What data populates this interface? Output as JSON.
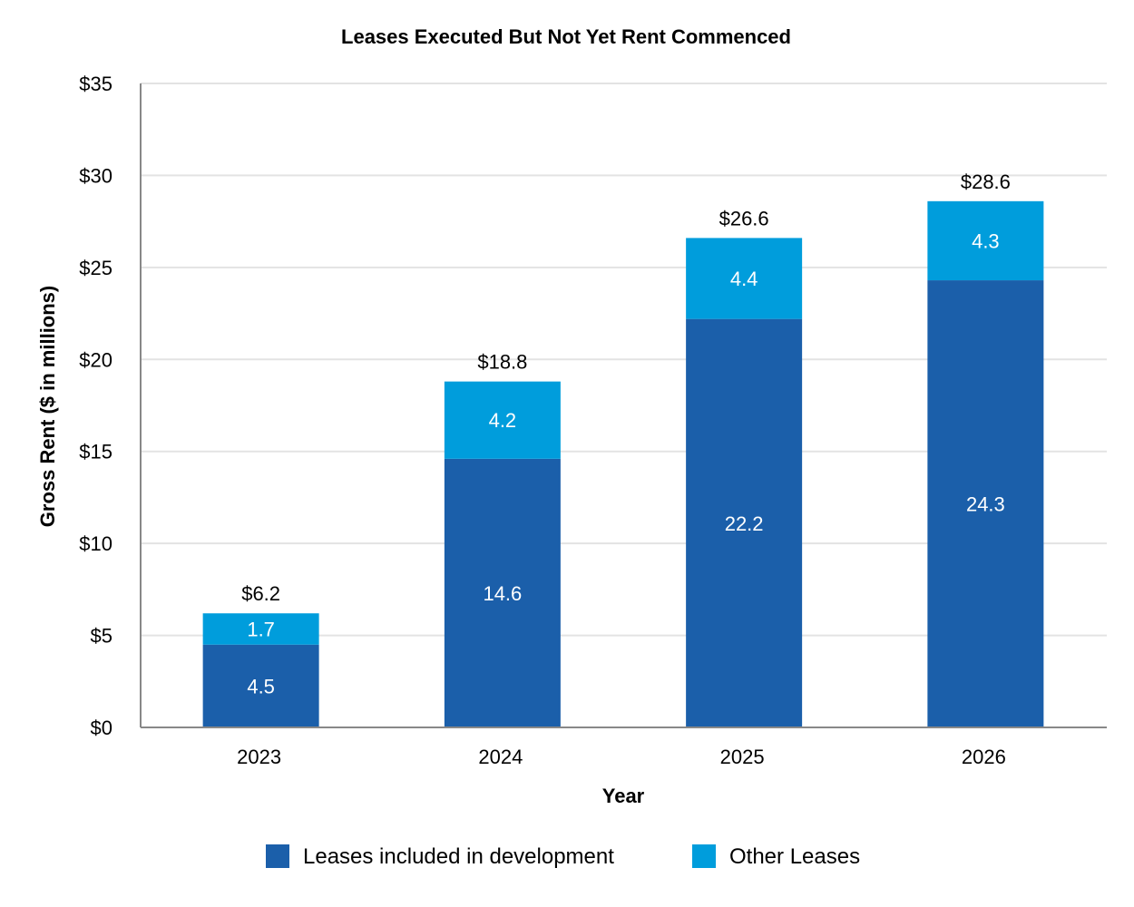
{
  "chart_data": {
    "type": "bar",
    "stacked": true,
    "title": "Leases Executed But Not Yet Rent Commenced",
    "xlabel": "Year",
    "ylabel": "Gross Rent ($ in millions)",
    "ylim": [
      0,
      35
    ],
    "yticks": [
      0,
      5,
      10,
      15,
      20,
      25,
      30,
      35
    ],
    "ytick_labels": [
      "$0",
      "$5",
      "$10",
      "$15",
      "$20",
      "$25",
      "$30",
      "$35"
    ],
    "grid": true,
    "legend_position": "bottom",
    "categories": [
      "2023",
      "2024",
      "2025",
      "2026"
    ],
    "series": [
      {
        "name": "Leases included in development",
        "color": "#1b5faa",
        "values": [
          4.5,
          14.6,
          22.2,
          24.3
        ],
        "labels": [
          "4.5",
          "14.6",
          "22.2",
          "24.3"
        ]
      },
      {
        "name": "Other Leases",
        "color": "#009ddc",
        "values": [
          1.7,
          4.2,
          4.4,
          4.3
        ],
        "labels": [
          "1.7",
          "4.2",
          "4.4",
          "4.3"
        ]
      }
    ],
    "totals": [
      6.2,
      18.8,
      26.6,
      28.6
    ],
    "total_labels": [
      "$6.2",
      "$18.8",
      "$26.6",
      "$28.6"
    ]
  }
}
